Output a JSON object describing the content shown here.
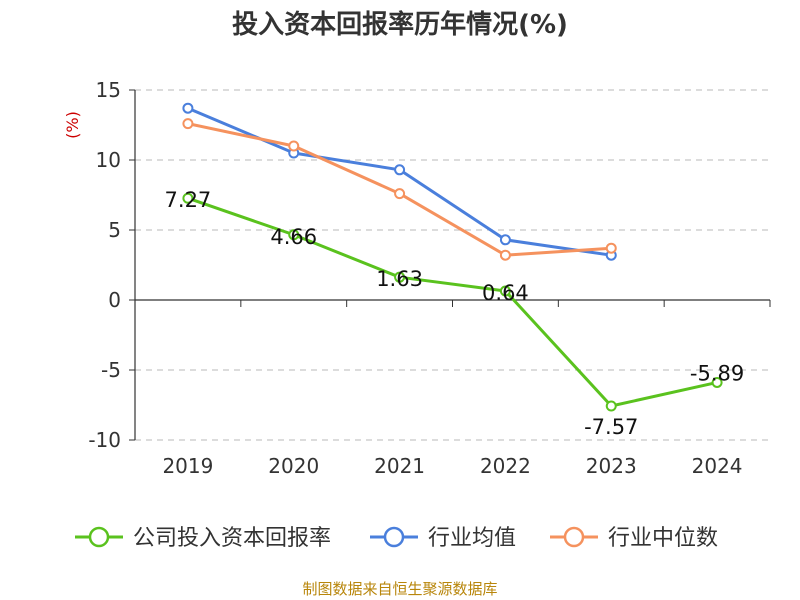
{
  "title": "投入资本回报率历年情况(%)",
  "footer": "制图数据来自恒生聚源数据库",
  "chart_data": {
    "type": "line",
    "title": "投入资本回报率历年情况(%)",
    "ylabel": "(%)",
    "xlabel": "",
    "categories": [
      "2019",
      "2020",
      "2021",
      "2022",
      "2023",
      "2024"
    ],
    "ylim": [
      -10,
      15
    ],
    "yticks": [
      15,
      10,
      5,
      0,
      -5,
      -10
    ],
    "grid": true,
    "legend_position": "bottom",
    "series": [
      {
        "name": "公司投入资本回报率",
        "color": "#5ac21e",
        "values": [
          7.27,
          4.66,
          1.63,
          0.64,
          -7.57,
          -5.89
        ],
        "labels": [
          "7.27",
          "4.66",
          "1.63",
          "0.64",
          "-7.57",
          "-5.89"
        ]
      },
      {
        "name": "行业均值",
        "color": "#4a7fdc",
        "values": [
          13.7,
          10.5,
          9.3,
          4.3,
          3.2,
          null
        ]
      },
      {
        "name": "行业中位数",
        "color": "#f5925e",
        "values": [
          12.6,
          11.0,
          7.6,
          3.2,
          3.7,
          null
        ]
      }
    ]
  }
}
